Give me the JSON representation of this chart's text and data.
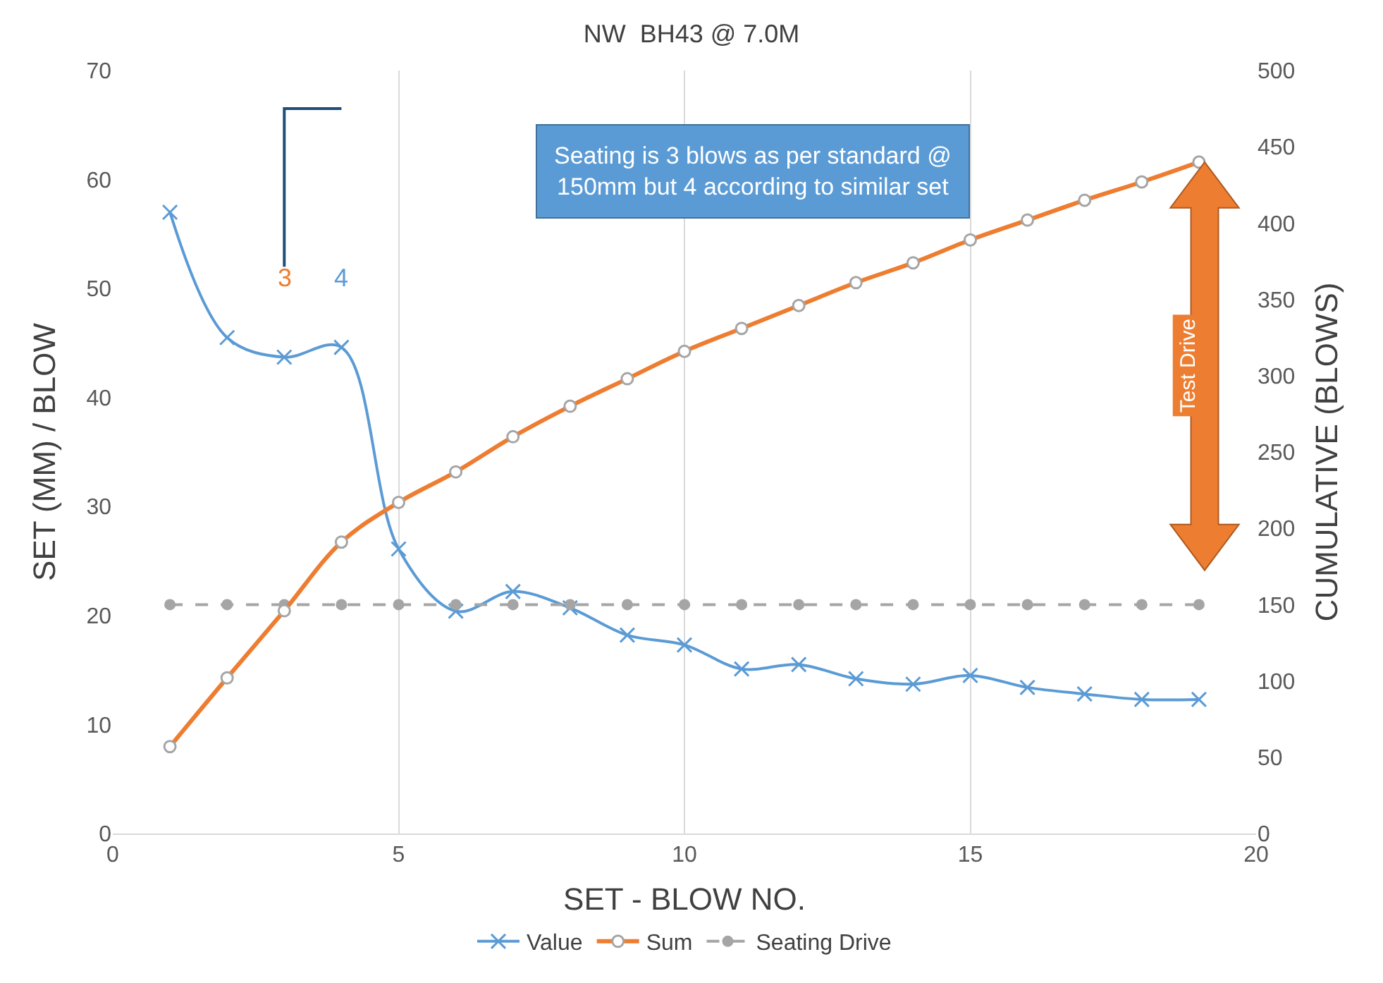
{
  "chart_data": {
    "type": "line",
    "title": "NW  BH43 @ 7.0M",
    "xlabel": "SET - BLOW NO.",
    "ylabel": "SET (MM) / BLOW",
    "y2label": "CUMULATIVE (BLOWS)",
    "x": [
      1,
      2,
      3,
      4,
      5,
      6,
      7,
      8,
      9,
      10,
      11,
      12,
      13,
      14,
      15,
      16,
      17,
      18,
      19
    ],
    "series": [
      {
        "name": "Value",
        "color": "#5b9bd5",
        "marker": "cross",
        "line_style": "solid",
        "values": [
          57,
          45.5,
          43.7,
          44.6,
          26.1,
          20.4,
          22.2,
          20.7,
          18.2,
          17.3,
          15.1,
          15.5,
          14.2,
          13.7,
          14.5,
          13.4,
          12.8,
          12.3,
          12.3
        ]
      },
      {
        "name": "Sum",
        "color": "#ed7d31",
        "marker": "circle",
        "line_style": "solid",
        "axis": "y2",
        "values": [
          57,
          102,
          146,
          191,
          217,
          237,
          260,
          280,
          298,
          316,
          331,
          346,
          361,
          374,
          389,
          402,
          415,
          427,
          440
        ]
      },
      {
        "name": "Seating Drive",
        "color": "#a5a5a5",
        "marker": "circle",
        "line_style": "dashed",
        "axis": "y2",
        "values": [
          150,
          150,
          150,
          150,
          150,
          150,
          150,
          150,
          150,
          150,
          150,
          150,
          150,
          150,
          150,
          150,
          150,
          150,
          150
        ]
      }
    ],
    "xlim": [
      0,
      20
    ],
    "xticks": [
      0,
      5,
      10,
      15,
      20
    ],
    "ylim": [
      0,
      70
    ],
    "yticks": [
      0,
      10,
      20,
      30,
      40,
      50,
      60,
      70
    ],
    "y2lim": [
      0,
      500
    ],
    "y2ticks": [
      0,
      50,
      100,
      150,
      200,
      250,
      300,
      350,
      400,
      450,
      500
    ],
    "grid": "x",
    "legend": "bottom",
    "annotations": [
      "3",
      "4",
      "Seating is 3 blows as per standard @\n150mm but 4 according to similar set",
      "Test Drive"
    ]
  }
}
